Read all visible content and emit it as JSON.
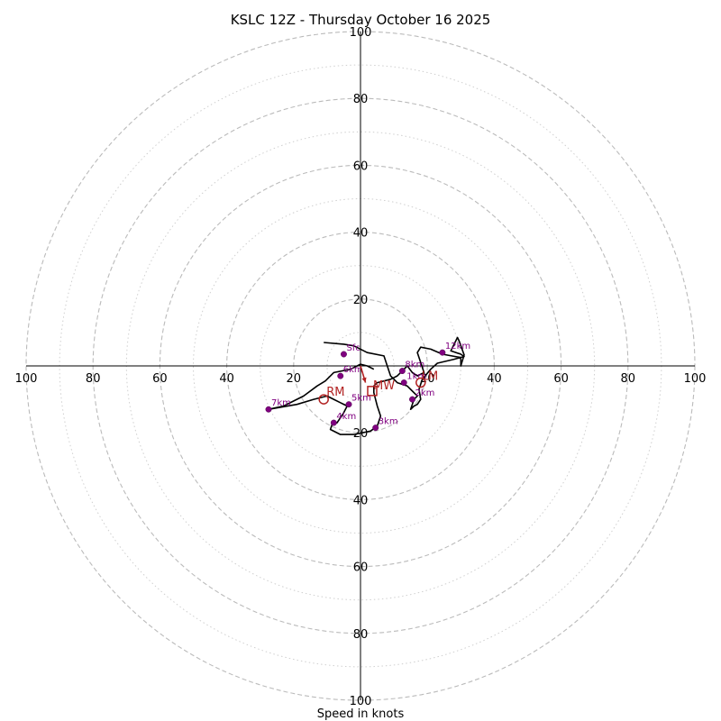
{
  "chart_data": {
    "type": "hodograph",
    "title": "KSLC 12Z - Thursday October 16 2025",
    "xlabel": "Speed in knots",
    "units": "knots",
    "speed_range": [
      0,
      100
    ],
    "dashed_rings": [
      20,
      40,
      60,
      80,
      100
    ],
    "dotted_rings": [
      10,
      30,
      50,
      70,
      90
    ],
    "axis_ticks": [
      "20",
      "40",
      "60",
      "80",
      "100"
    ],
    "colors": {
      "trace": "#000000",
      "height_markers": "#800080",
      "storm_motion": "#b22222",
      "rings": "#bbbbbb",
      "axes": "#000000"
    },
    "trace": [
      [
        -11,
        7
      ],
      [
        -5,
        6.5
      ],
      [
        -2,
        6
      ],
      [
        2,
        4
      ],
      [
        7,
        3
      ],
      [
        8,
        0
      ],
      [
        9,
        -3
      ],
      [
        11,
        -5
      ],
      [
        14,
        -6
      ],
      [
        15,
        -7
      ],
      [
        17,
        -9
      ],
      [
        16,
        -10
      ],
      [
        15,
        -13
      ],
      [
        16,
        -12
      ],
      [
        17,
        -11.5
      ],
      [
        18,
        -10
      ],
      [
        17.5,
        -7
      ],
      [
        18.5,
        -4
      ],
      [
        21,
        -1
      ],
      [
        23,
        0.8
      ],
      [
        26,
        1.5
      ],
      [
        28,
        2
      ],
      [
        31,
        2.8
      ],
      [
        30,
        3.5
      ],
      [
        27,
        4.5
      ],
      [
        28,
        6.5
      ],
      [
        29,
        8.5
      ],
      [
        29.5,
        7.5
      ],
      [
        31,
        3.3
      ],
      [
        30,
        0
      ],
      [
        30,
        2.5
      ],
      [
        24.5,
        3.5
      ],
      [
        21,
        5
      ],
      [
        18,
        5.6
      ],
      [
        17,
        4
      ],
      [
        18,
        1
      ],
      [
        19,
        -2
      ],
      [
        17,
        -3
      ],
      [
        15.5,
        -2
      ],
      [
        14,
        0
      ],
      [
        12,
        -2
      ],
      [
        11,
        -3
      ],
      [
        9,
        -4
      ],
      [
        5,
        -5
      ],
      [
        4,
        -6
      ],
      [
        4,
        -8
      ],
      [
        5,
        -12
      ],
      [
        6,
        -15
      ],
      [
        5,
        -18
      ],
      [
        3,
        -19.5
      ],
      [
        -2,
        -20.5
      ],
      [
        -6,
        -20.5
      ],
      [
        -9,
        -19
      ],
      [
        -8.5,
        -17.5
      ],
      [
        -7,
        -17
      ],
      [
        -5,
        -14
      ],
      [
        -4,
        -12
      ],
      [
        -6,
        -11
      ],
      [
        -8,
        -10
      ],
      [
        -10,
        -9
      ],
      [
        -14,
        -10
      ],
      [
        -19,
        -11.5
      ],
      [
        -27.5,
        -13
      ],
      [
        -23,
        -12
      ],
      [
        -17,
        -9
      ],
      [
        -13,
        -6
      ],
      [
        -10.5,
        -4.5
      ],
      [
        -8,
        -2
      ],
      [
        -3,
        -1
      ],
      [
        0,
        0.5
      ],
      [
        2,
        0
      ],
      [
        4,
        -1
      ]
    ],
    "height_markers": [
      {
        "label": "Sfc",
        "u": -5,
        "v": 3.5
      },
      {
        "label": "1km",
        "u": 13,
        "v": -5
      },
      {
        "label": "2km",
        "u": 15.5,
        "v": -10
      },
      {
        "label": "3km",
        "u": 4.5,
        "v": -18.5
      },
      {
        "label": "4km",
        "u": -8,
        "v": -17
      },
      {
        "label": "5km",
        "u": -3.5,
        "v": -11.5
      },
      {
        "label": "6km",
        "u": -6,
        "v": -3
      },
      {
        "label": "7km",
        "u": -27.5,
        "v": -13
      },
      {
        "label": "8km",
        "u": 12.5,
        "v": -1.5
      },
      {
        "label": "12km",
        "u": 24.5,
        "v": 4
      }
    ],
    "storm_motion": {
      "rm": {
        "label": "RM",
        "u": -11,
        "v": -10
      },
      "lm": {
        "label": "LM",
        "u": 18,
        "v": -5
      },
      "mw": {
        "label": "MW",
        "u": 3.5,
        "v": -7.5
      },
      "mw_vector": [
        1.5,
        -5
      ]
    }
  }
}
